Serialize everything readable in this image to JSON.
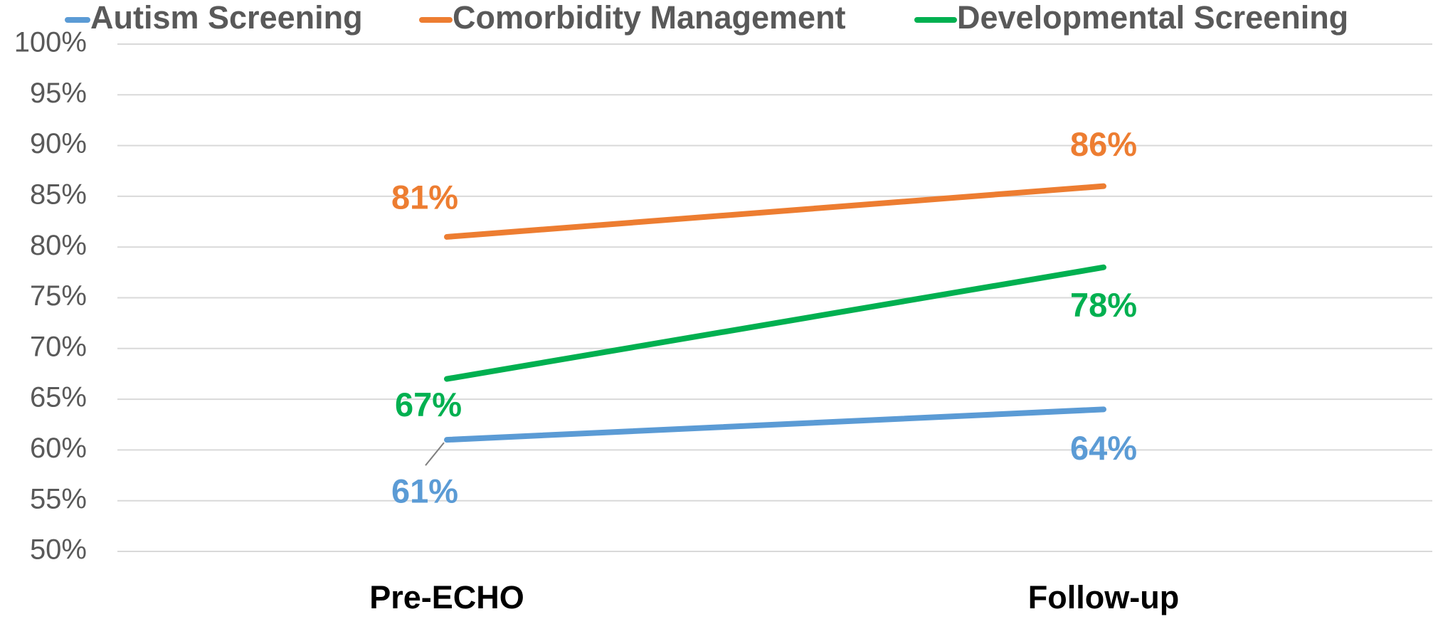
{
  "chart_data": {
    "type": "line",
    "categories": [
      "Pre-ECHO",
      "Follow-up"
    ],
    "series": [
      {
        "name": "Autism Screening",
        "color": "#5b9bd5",
        "values": [
          61,
          64
        ],
        "value_labels": [
          "61%",
          "64%"
        ]
      },
      {
        "name": "Comorbidity Management",
        "color": "#ed7d31",
        "values": [
          81,
          86
        ],
        "value_labels": [
          "81%",
          "86%"
        ]
      },
      {
        "name": "Developmental Screening",
        "color": "#00b050",
        "values": [
          67,
          78
        ],
        "value_labels": [
          "67%",
          "78%"
        ]
      }
    ],
    "ylim": [
      50,
      100
    ],
    "yticks": [
      {
        "value": 50,
        "label": "50%"
      },
      {
        "value": 55,
        "label": "55%"
      },
      {
        "value": 60,
        "label": "60%"
      },
      {
        "value": 65,
        "label": "65%"
      },
      {
        "value": 70,
        "label": "70%"
      },
      {
        "value": 75,
        "label": "75%"
      },
      {
        "value": 80,
        "label": "80%"
      },
      {
        "value": 85,
        "label": "85%"
      },
      {
        "value": 90,
        "label": "90%"
      },
      {
        "value": 95,
        "label": "95%"
      },
      {
        "value": 100,
        "label": "100%"
      }
    ],
    "grid": true,
    "legend": "top"
  }
}
